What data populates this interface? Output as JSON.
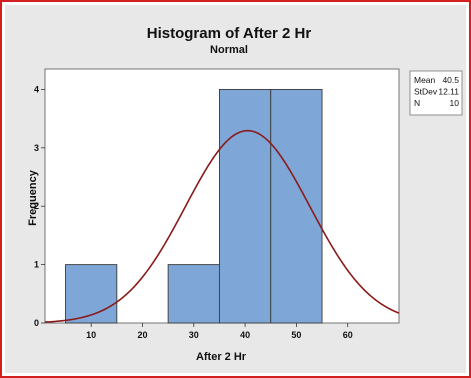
{
  "chart_data": {
    "type": "bar",
    "title": "Histogram of After 2 Hr",
    "subtitle": "Normal",
    "xlabel": "After 2 Hr",
    "ylabel": "Frequency",
    "bins": [
      {
        "x0": 5,
        "x1": 15,
        "count": 1
      },
      {
        "x0": 15,
        "x1": 25,
        "count": 0
      },
      {
        "x0": 25,
        "x1": 35,
        "count": 1
      },
      {
        "x0": 35,
        "x1": 45,
        "count": 4
      },
      {
        "x0": 45,
        "x1": 55,
        "count": 4
      }
    ],
    "xlim": [
      1,
      70
    ],
    "ylim": [
      0,
      4.35
    ],
    "xticks": [
      10,
      20,
      30,
      40,
      50,
      60
    ],
    "yticks": [
      0,
      1,
      2,
      3,
      4
    ],
    "fit": {
      "type": "normal",
      "mean": 40.5,
      "stdev": 12.11,
      "n": 10,
      "bin_width": 10
    },
    "legend": [
      {
        "label": "Mean",
        "value": "40.5"
      },
      {
        "label": "StDev",
        "value": "12.11"
      },
      {
        "label": "N",
        "value": "10"
      }
    ],
    "colors": {
      "bar": "#7ea7d8",
      "bar_stroke": "#3a3a3a",
      "curve": "#8b1a1a",
      "plot_bg": "#ffffff",
      "panel_bg": "#e8e8e8"
    }
  }
}
